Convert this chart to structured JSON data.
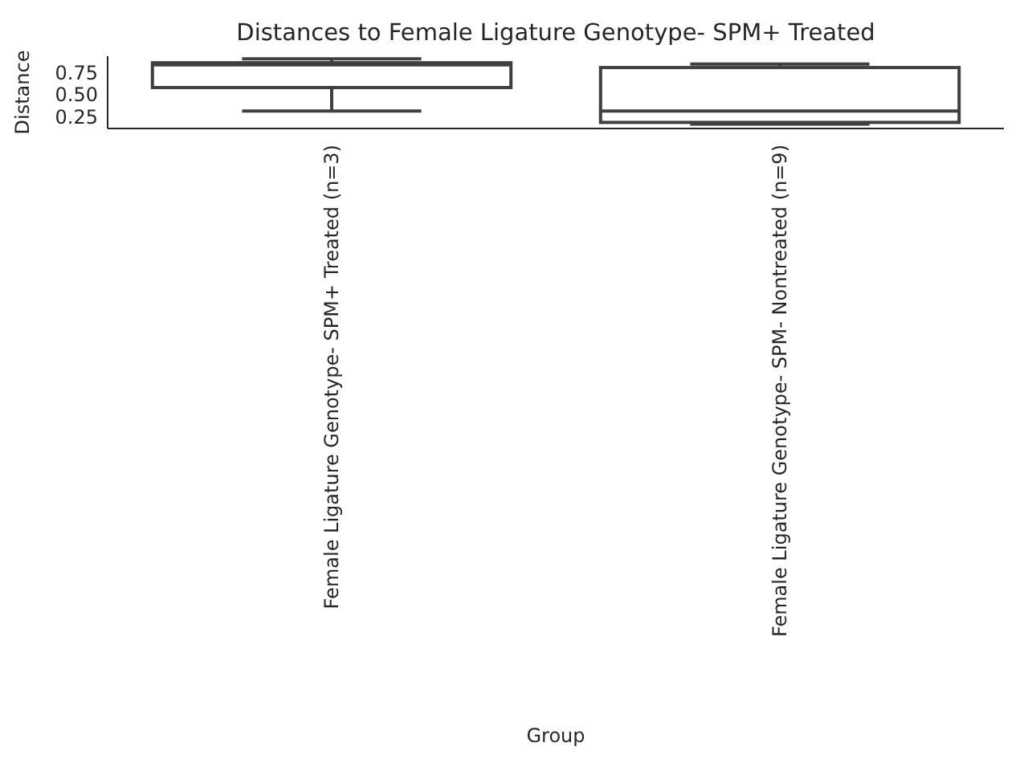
{
  "chart_data": {
    "type": "box",
    "title": "Distances to Female Ligature Genotype- SPM+ Treated",
    "xlabel": "Group",
    "ylabel": "Distance",
    "categories": [
      "Female Ligature Genotype- SPM+ Treated (n=3)",
      "Female Ligature Genotype- SPM- Nontreated (n=9)"
    ],
    "boxes": [
      {
        "low": 0.32,
        "q1": 0.59,
        "median": 0.85,
        "q3": 0.875,
        "high": 0.92
      },
      {
        "low": 0.17,
        "q1": 0.19,
        "median": 0.32,
        "q3": 0.82,
        "high": 0.86
      }
    ],
    "color": "#3f3f3f",
    "ylim": [
      0.12,
      0.95
    ],
    "yticks": [
      0.25,
      {
        "value": 0.5,
        "label": "0.50"
      },
      0.75
    ],
    "grid": false
  }
}
